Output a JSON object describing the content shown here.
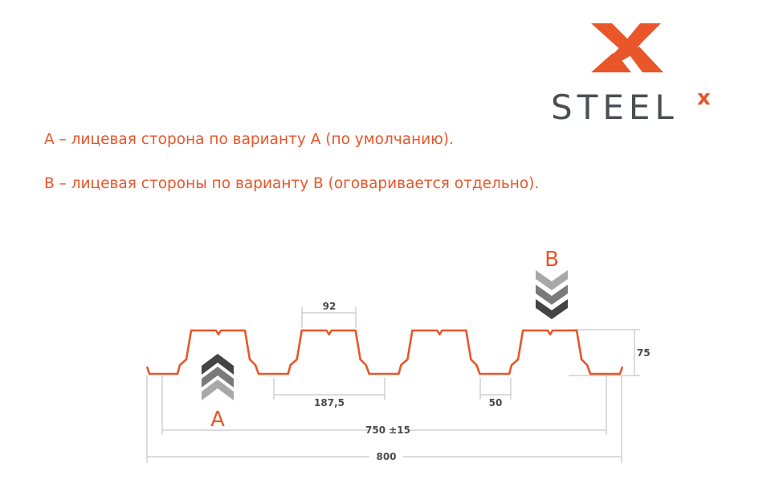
{
  "logo": {
    "text": "STEEL",
    "superscript": "x",
    "brand_color": "#e8562a",
    "text_color": "#4a4f54"
  },
  "notes": [
    "А – лицевая сторона по варианту А (по умолчанию).",
    "В – лицевая стороны по варианту В (оговаривается отдельно)."
  ],
  "diagram": {
    "profile_color": "#e8562a",
    "labels": {
      "side_a": "A",
      "side_b": "B"
    },
    "dimensions": {
      "top_width": "92",
      "pitch": "187,5",
      "bottom_width": "50",
      "height": "75",
      "useful_width": "750 ±15",
      "total_width": "800"
    },
    "chevron_colors": [
      "#444444",
      "#7a7a7a",
      "#a8a8a8"
    ]
  }
}
